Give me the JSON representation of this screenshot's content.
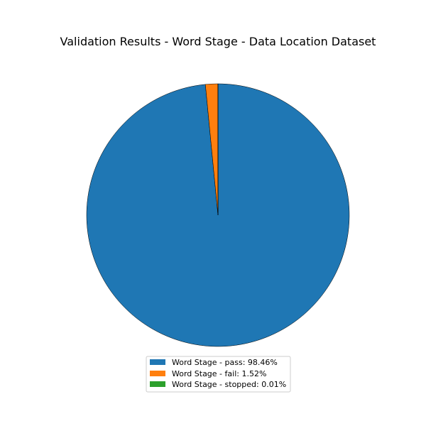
{
  "chart_data": {
    "type": "pie",
    "title": "Validation Results - Word Stage - Data Location Dataset",
    "start_angle_deg": 90,
    "direction": "clockwise",
    "slices": [
      {
        "label": "Word Stage - pass: 98.46%",
        "value": 98.46,
        "color": "#1f77b4"
      },
      {
        "label": "Word Stage - fail: 1.52%",
        "value": 1.52,
        "color": "#ff7f0e"
      },
      {
        "label": "Word Stage - stopped: 0.01%",
        "value": 0.01,
        "color": "#2ca02c"
      }
    ],
    "legend": {
      "position": "bottom-center",
      "entries": [
        "Word Stage - pass: 98.46%",
        "Word Stage - fail: 1.52%",
        "Word Stage - stopped: 0.01%"
      ]
    }
  }
}
